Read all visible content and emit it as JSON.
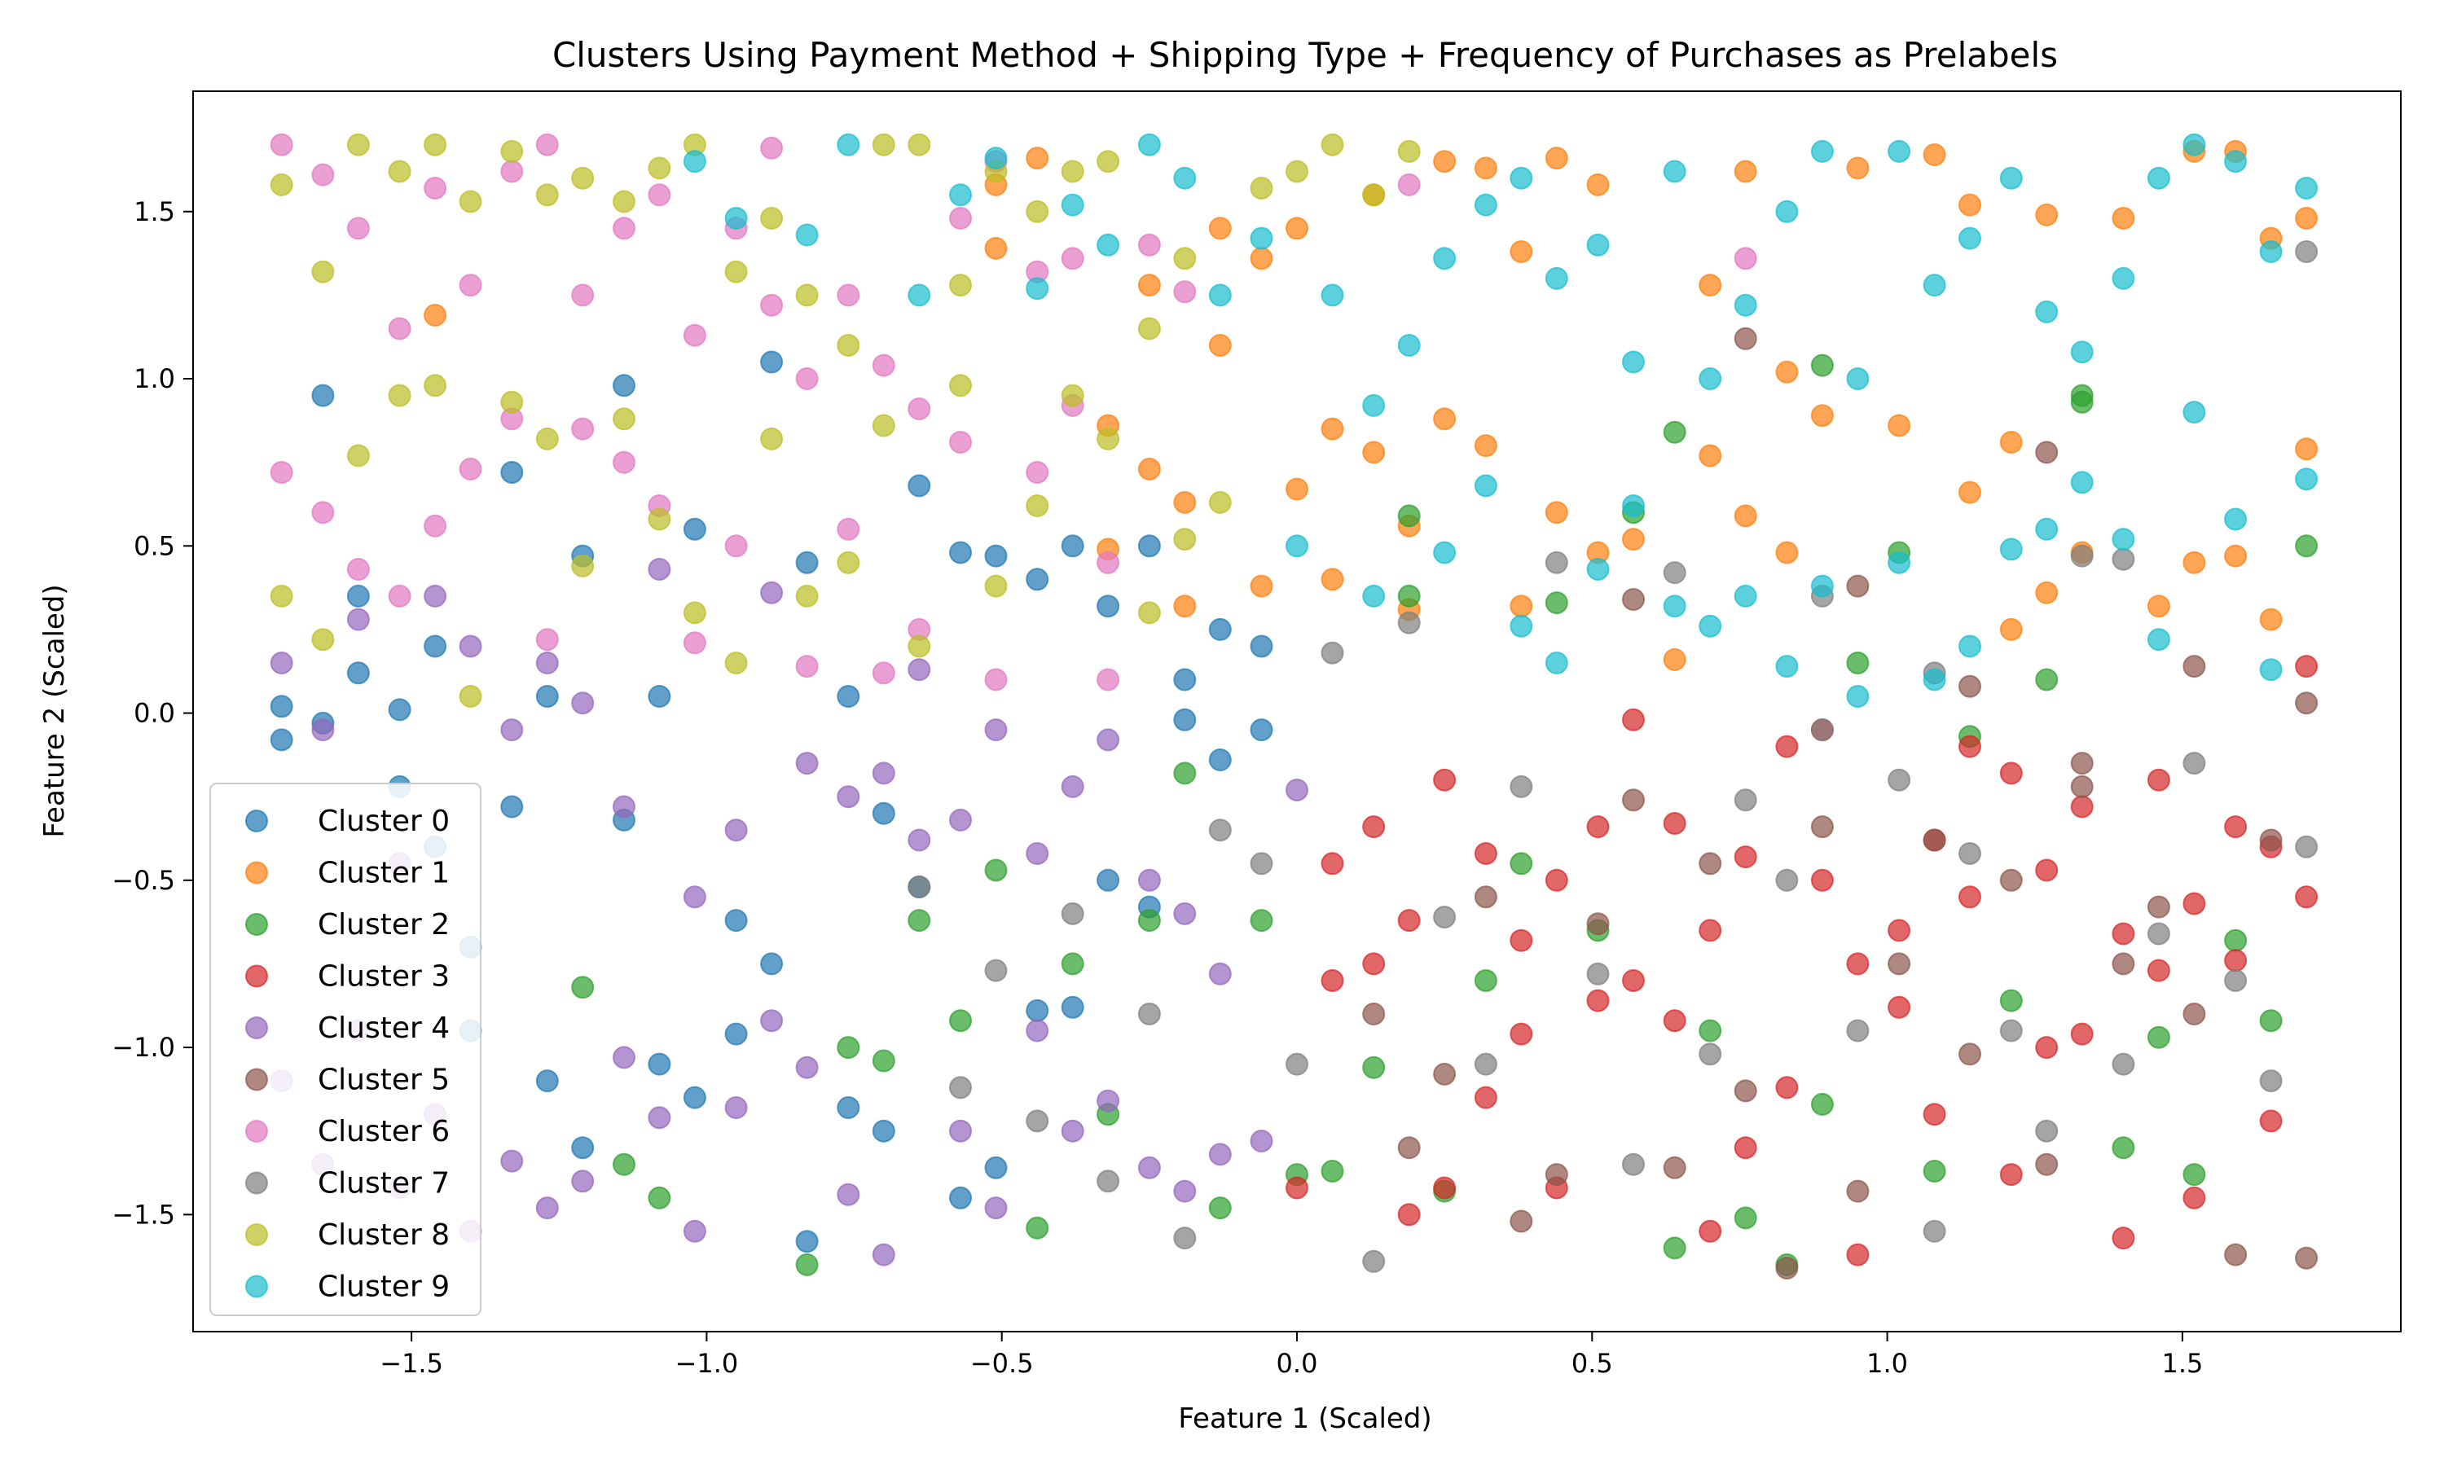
{
  "chart_data": {
    "type": "scatter",
    "title": "Clusters Using Payment Method + Shipping Type + Frequency of Purchases as Prelabels",
    "xlabel": "Feature 1 (Scaled)",
    "ylabel": "Feature 2 (Scaled)",
    "xlim": [
      -1.87,
      1.87
    ],
    "ylim": [
      -1.85,
      1.86
    ],
    "xticks": [
      -1.5,
      -1.0,
      -0.5,
      0.0,
      0.5,
      1.0,
      1.5
    ],
    "yticks": [
      -1.5,
      -1.0,
      -0.5,
      0.0,
      0.5,
      1.0,
      1.5
    ],
    "xtick_labels": [
      "−1.5",
      "−1.0",
      "−0.5",
      "0.0",
      "0.5",
      "1.0",
      "1.5"
    ],
    "ytick_labels": [
      "−1.5",
      "−1.0",
      "−0.5",
      "0.0",
      "0.5",
      "1.0",
      "1.5"
    ],
    "grid": false,
    "legend_position": "lower-left",
    "marker_alpha": 0.7,
    "x_columns": {
      "count": 55,
      "min": -1.71,
      "max": 1.71
    },
    "y_levels": {
      "count": 50,
      "min": -1.68,
      "max": 1.7
    },
    "series": [
      {
        "name": "Cluster 0",
        "color": "#1f77b4",
        "x": [
          -1.72,
          -1.72,
          -1.65,
          -1.65,
          -1.59,
          -1.59,
          -1.52,
          -1.52,
          -1.46,
          -1.46,
          -1.4,
          -1.4,
          -1.33,
          -1.33,
          -1.27,
          -1.27,
          -1.21,
          -1.21,
          -1.14,
          -1.14,
          -1.08,
          -1.08,
          -1.02,
          -1.02,
          -0.95,
          -0.95,
          -0.89,
          -0.89,
          -0.83,
          -0.83,
          -0.76,
          -0.76,
          -0.7,
          -0.7,
          -0.64,
          -0.64,
          -0.57,
          -0.57,
          -0.51,
          -0.51,
          -0.44,
          -0.44,
          -0.38,
          -0.38,
          -0.32,
          -0.32,
          -0.25,
          -0.25,
          -0.19,
          -0.19,
          -0.13,
          -0.13,
          -0.06,
          -0.06
        ],
        "y": [
          -0.08,
          0.02,
          0.95,
          -0.03,
          0.35,
          0.12,
          0.01,
          -0.22,
          0.2,
          -0.4,
          -0.7,
          -0.95,
          0.72,
          -0.28,
          0.05,
          -1.1,
          0.47,
          -1.3,
          0.98,
          -0.32,
          0.05,
          -1.05,
          0.55,
          -1.15,
          -0.62,
          -0.96,
          1.05,
          -0.75,
          0.45,
          -1.58,
          0.05,
          -1.18,
          -0.3,
          -1.25,
          0.68,
          -0.52,
          0.48,
          -1.45,
          0.47,
          -1.36,
          0.4,
          -0.89,
          0.5,
          -0.88,
          0.32,
          -0.5,
          0.5,
          -0.58,
          0.1,
          -0.02,
          0.25,
          -0.14,
          0.2,
          -0.05
        ]
      },
      {
        "name": "Cluster 1",
        "color": "#ff7f0e",
        "x": [
          -1.46,
          -0.51,
          -0.51,
          -0.44,
          -0.32,
          -0.32,
          -0.25,
          -0.25,
          -0.19,
          -0.19,
          -0.13,
          -0.13,
          -0.06,
          -0.06,
          0.0,
          0.0,
          0.06,
          0.06,
          0.13,
          0.13,
          0.19,
          0.19,
          0.25,
          0.25,
          0.32,
          0.32,
          0.38,
          0.38,
          0.44,
          0.44,
          0.51,
          0.51,
          0.57,
          0.64,
          0.7,
          0.7,
          0.76,
          0.76,
          0.83,
          0.83,
          0.89,
          0.95,
          1.02,
          1.08,
          1.14,
          1.14,
          1.21,
          1.21,
          1.27,
          1.27,
          1.33,
          1.4,
          1.46,
          1.52,
          1.52,
          1.59,
          1.59,
          1.65,
          1.65,
          1.71,
          1.71
        ],
        "y": [
          1.19,
          1.58,
          1.39,
          1.66,
          0.86,
          0.49,
          1.28,
          0.73,
          0.63,
          0.32,
          1.1,
          1.45,
          0.38,
          1.36,
          0.67,
          1.45,
          0.4,
          0.85,
          1.55,
          0.78,
          0.31,
          0.56,
          1.65,
          0.88,
          1.63,
          0.8,
          1.38,
          0.32,
          1.66,
          0.6,
          1.58,
          0.48,
          0.52,
          0.16,
          1.28,
          0.77,
          0.59,
          1.62,
          0.48,
          1.02,
          0.89,
          1.63,
          0.86,
          1.67,
          0.66,
          1.52,
          0.81,
          0.25,
          0.36,
          1.49,
          0.48,
          1.48,
          0.32,
          1.68,
          0.45,
          1.68,
          0.47,
          1.42,
          0.28,
          1.48,
          0.79
        ]
      },
      {
        "name": "Cluster 2",
        "color": "#2ca02c",
        "x": [
          -1.21,
          -1.14,
          -1.08,
          -0.83,
          -0.76,
          -0.7,
          -0.64,
          -0.57,
          -0.51,
          -0.44,
          -0.38,
          -0.32,
          -0.25,
          -0.19,
          -0.13,
          -0.06,
          0.0,
          0.06,
          0.13,
          0.19,
          0.25,
          0.32,
          0.38,
          0.44,
          0.51,
          0.57,
          0.64,
          0.7,
          0.76,
          0.83,
          0.89,
          0.95,
          1.02,
          1.08,
          1.14,
          1.21,
          1.27,
          1.33,
          1.4,
          1.46,
          1.52,
          1.59,
          1.65,
          1.71,
          0.19,
          0.64,
          0.89,
          1.33
        ],
        "y": [
          -0.82,
          -1.35,
          -1.45,
          -1.65,
          -1.0,
          -1.04,
          -0.62,
          -0.92,
          -0.47,
          -1.54,
          -0.75,
          -1.2,
          -0.62,
          -0.18,
          -1.48,
          -0.62,
          -1.38,
          -1.37,
          -1.06,
          0.59,
          -1.43,
          -0.8,
          -0.45,
          0.33,
          -0.65,
          0.6,
          -1.6,
          -0.95,
          -1.51,
          -1.65,
          -1.17,
          0.15,
          0.48,
          -1.37,
          -0.07,
          -0.86,
          0.1,
          0.95,
          -1.3,
          -0.97,
          -1.38,
          -0.68,
          -0.92,
          0.5,
          0.35,
          0.84,
          1.04,
          0.93
        ]
      },
      {
        "name": "Cluster 3",
        "color": "#d62728",
        "x": [
          0.0,
          0.06,
          0.06,
          0.13,
          0.13,
          0.19,
          0.19,
          0.25,
          0.25,
          0.32,
          0.32,
          0.38,
          0.38,
          0.44,
          0.44,
          0.51,
          0.51,
          0.57,
          0.57,
          0.64,
          0.64,
          0.7,
          0.7,
          0.76,
          0.76,
          0.83,
          0.83,
          0.89,
          0.89,
          0.95,
          0.95,
          1.02,
          1.02,
          1.08,
          1.08,
          1.14,
          1.14,
          1.21,
          1.21,
          1.27,
          1.27,
          1.33,
          1.33,
          1.4,
          1.4,
          1.46,
          1.46,
          1.52,
          1.52,
          1.59,
          1.59,
          1.65,
          1.65,
          1.71,
          1.71
        ],
        "y": [
          -1.42,
          -0.45,
          -0.8,
          -0.34,
          -0.75,
          -0.62,
          -1.5,
          -1.42,
          -0.2,
          -0.42,
          -1.15,
          -0.68,
          -0.96,
          -0.5,
          -1.42,
          -0.86,
          -0.34,
          -0.02,
          -0.8,
          -0.92,
          -0.33,
          -0.65,
          -1.55,
          -0.43,
          -1.3,
          -0.1,
          -1.12,
          -0.05,
          -0.5,
          -0.75,
          -1.62,
          -0.65,
          -0.88,
          -1.2,
          -0.38,
          -0.1,
          -0.55,
          -0.18,
          -1.38,
          -0.47,
          -1.0,
          -0.28,
          -0.96,
          -0.66,
          -1.57,
          -0.2,
          -0.77,
          -0.57,
          -1.45,
          -0.34,
          -0.74,
          -0.4,
          -1.22,
          -0.55,
          0.14
        ]
      },
      {
        "name": "Cluster 4",
        "color": "#9467bd",
        "x": [
          -1.72,
          -1.72,
          -1.65,
          -1.65,
          -1.59,
          -1.59,
          -1.52,
          -1.52,
          -1.46,
          -1.46,
          -1.4,
          -1.4,
          -1.33,
          -1.33,
          -1.27,
          -1.27,
          -1.21,
          -1.21,
          -1.14,
          -1.14,
          -1.08,
          -1.08,
          -1.02,
          -1.02,
          -0.95,
          -0.95,
          -0.89,
          -0.89,
          -0.83,
          -0.83,
          -0.76,
          -0.76,
          -0.7,
          -0.7,
          -0.64,
          -0.64,
          -0.57,
          -0.57,
          -0.51,
          -0.51,
          -0.44,
          -0.44,
          -0.38,
          -0.38,
          -0.32,
          -0.32,
          -0.25,
          -0.25,
          -0.19,
          -0.19,
          -0.13,
          -0.13,
          -0.06,
          0.0
        ],
        "y": [
          0.15,
          -1.1,
          -0.05,
          -1.35,
          0.28,
          -0.95,
          -0.45,
          -1.42,
          0.35,
          -1.2,
          0.2,
          -1.55,
          -0.05,
          -1.34,
          0.15,
          -1.48,
          0.03,
          -1.4,
          -0.28,
          -1.03,
          0.43,
          -1.21,
          -0.55,
          -1.55,
          -0.35,
          -1.18,
          0.36,
          -0.92,
          -0.15,
          -1.06,
          -0.25,
          -1.44,
          -0.18,
          -1.62,
          0.13,
          -0.38,
          -0.32,
          -1.25,
          -0.05,
          -1.48,
          -0.42,
          -0.95,
          -0.22,
          -1.25,
          -0.08,
          -1.16,
          -0.5,
          -1.36,
          -0.6,
          -1.43,
          -0.78,
          -1.32,
          -1.28,
          -0.23
        ]
      },
      {
        "name": "Cluster 5",
        "color": "#8c564b",
        "x": [
          0.13,
          0.19,
          0.25,
          0.32,
          0.38,
          0.44,
          0.51,
          0.57,
          0.64,
          0.7,
          0.76,
          0.83,
          0.89,
          0.95,
          1.02,
          1.08,
          1.14,
          1.21,
          1.27,
          1.33,
          1.4,
          1.46,
          1.52,
          1.59,
          1.65,
          1.71,
          0.57,
          0.76,
          0.95,
          1.14,
          1.33,
          1.52,
          1.71,
          1.27
        ],
        "y": [
          -0.9,
          -1.3,
          -1.08,
          -0.55,
          -1.52,
          -1.38,
          -0.63,
          -0.26,
          -1.36,
          -0.45,
          -1.13,
          -1.66,
          -0.34,
          -1.43,
          -0.75,
          -0.38,
          -1.02,
          -0.5,
          -1.35,
          -0.22,
          -0.75,
          -0.58,
          -0.9,
          -1.62,
          -0.38,
          -1.63,
          0.34,
          1.12,
          0.38,
          0.08,
          -0.15,
          0.14,
          0.03,
          0.78
        ]
      },
      {
        "name": "Cluster 6",
        "color": "#e377c2",
        "x": [
          -1.72,
          -1.72,
          -1.65,
          -1.65,
          -1.59,
          -1.59,
          -1.52,
          -1.52,
          -1.46,
          -1.46,
          -1.4,
          -1.4,
          -1.33,
          -1.33,
          -1.27,
          -1.27,
          -1.21,
          -1.21,
          -1.14,
          -1.14,
          -1.08,
          -1.08,
          -1.02,
          -1.02,
          -0.95,
          -0.95,
          -0.89,
          -0.89,
          -0.83,
          -0.83,
          -0.76,
          -0.76,
          -0.7,
          -0.7,
          -0.64,
          -0.64,
          -0.57,
          -0.57,
          -0.51,
          -0.51,
          -0.44,
          -0.44,
          -0.38,
          -0.38,
          -0.32,
          -0.32,
          -0.25,
          -0.19,
          0.19,
          0.76
        ],
        "y": [
          1.7,
          0.72,
          1.61,
          0.6,
          1.45,
          0.43,
          1.15,
          0.35,
          1.57,
          0.56,
          1.28,
          0.73,
          1.62,
          0.88,
          1.7,
          0.22,
          1.25,
          0.85,
          1.45,
          0.75,
          1.55,
          0.62,
          1.13,
          0.21,
          1.45,
          0.5,
          1.69,
          1.22,
          1.0,
          0.14,
          1.25,
          0.55,
          1.04,
          0.12,
          0.91,
          0.25,
          1.48,
          0.81,
          1.65,
          0.1,
          1.32,
          0.72,
          1.36,
          0.92,
          0.45,
          0.1,
          1.4,
          1.26,
          1.58,
          1.36
        ]
      },
      {
        "name": "Cluster 7",
        "color": "#7f7f7f",
        "x": [
          -0.64,
          -0.57,
          -0.51,
          -0.44,
          -0.38,
          -0.32,
          -0.25,
          -0.19,
          -0.13,
          -0.06,
          0.0,
          0.06,
          0.13,
          0.19,
          0.25,
          0.32,
          0.38,
          0.44,
          0.51,
          0.57,
          0.64,
          0.7,
          0.76,
          0.83,
          0.89,
          0.95,
          1.02,
          1.08,
          1.14,
          1.21,
          1.27,
          1.33,
          1.4,
          1.46,
          1.52,
          1.59,
          1.65,
          1.71,
          0.89,
          1.08,
          1.4,
          1.71
        ],
        "y": [
          -0.52,
          -1.12,
          -0.77,
          -1.22,
          -0.6,
          -1.4,
          -0.9,
          -1.57,
          -0.35,
          -0.45,
          -1.05,
          0.18,
          -1.64,
          0.27,
          -0.61,
          -1.05,
          -0.22,
          0.45,
          -0.78,
          -1.35,
          0.42,
          -1.02,
          -0.26,
          -0.5,
          0.35,
          -0.95,
          -0.2,
          -1.55,
          -0.42,
          -0.95,
          -1.25,
          0.47,
          -1.05,
          -0.66,
          -0.15,
          -0.8,
          -1.1,
          -0.4,
          -0.05,
          0.12,
          0.46,
          1.38
        ]
      },
      {
        "name": "Cluster 8",
        "color": "#bcbd22",
        "x": [
          -1.72,
          -1.72,
          -1.65,
          -1.65,
          -1.59,
          -1.59,
          -1.52,
          -1.52,
          -1.46,
          -1.46,
          -1.4,
          -1.4,
          -1.33,
          -1.33,
          -1.27,
          -1.27,
          -1.21,
          -1.21,
          -1.14,
          -1.14,
          -1.08,
          -1.08,
          -1.02,
          -1.02,
          -0.95,
          -0.95,
          -0.89,
          -0.89,
          -0.83,
          -0.83,
          -0.76,
          -0.76,
          -0.7,
          -0.7,
          -0.64,
          -0.64,
          -0.57,
          -0.57,
          -0.51,
          -0.51,
          -0.44,
          -0.44,
          -0.38,
          -0.38,
          -0.32,
          -0.32,
          -0.25,
          -0.25,
          -0.19,
          -0.19,
          -0.13,
          -0.06,
          0.0,
          0.06,
          0.13,
          0.19
        ],
        "y": [
          1.58,
          0.35,
          1.32,
          0.22,
          1.7,
          0.77,
          1.62,
          0.95,
          1.7,
          0.98,
          1.53,
          0.05,
          1.68,
          0.93,
          1.55,
          0.82,
          1.6,
          0.44,
          1.53,
          0.88,
          1.63,
          0.58,
          1.7,
          0.3,
          1.32,
          0.15,
          1.48,
          0.82,
          1.25,
          0.35,
          1.1,
          0.45,
          1.7,
          0.86,
          1.7,
          0.2,
          1.28,
          0.98,
          1.62,
          0.38,
          1.5,
          0.62,
          1.62,
          0.95,
          1.65,
          0.82,
          1.15,
          0.3,
          1.36,
          0.52,
          0.63,
          1.57,
          1.62,
          1.7,
          1.55,
          1.68
        ]
      },
      {
        "name": "Cluster 9",
        "color": "#17becf",
        "x": [
          -1.02,
          -0.95,
          -0.83,
          -0.76,
          -0.64,
          -0.57,
          -0.51,
          -0.44,
          -0.38,
          -0.32,
          -0.25,
          -0.19,
          -0.13,
          -0.06,
          0.0,
          0.06,
          0.13,
          0.13,
          0.19,
          0.25,
          0.25,
          0.32,
          0.32,
          0.38,
          0.38,
          0.44,
          0.44,
          0.51,
          0.51,
          0.57,
          0.57,
          0.64,
          0.64,
          0.7,
          0.7,
          0.76,
          0.76,
          0.83,
          0.83,
          0.89,
          0.89,
          0.95,
          0.95,
          1.02,
          1.02,
          1.08,
          1.08,
          1.14,
          1.14,
          1.21,
          1.21,
          1.27,
          1.27,
          1.33,
          1.33,
          1.4,
          1.4,
          1.46,
          1.46,
          1.52,
          1.52,
          1.59,
          1.59,
          1.65,
          1.65,
          1.71,
          1.71
        ],
        "y": [
          1.65,
          1.48,
          1.43,
          1.7,
          1.25,
          1.55,
          1.66,
          1.27,
          1.52,
          1.4,
          1.7,
          1.6,
          1.25,
          1.42,
          0.5,
          1.25,
          0.92,
          0.35,
          1.1,
          0.48,
          1.36,
          0.68,
          1.52,
          0.26,
          1.6,
          0.15,
          1.3,
          0.43,
          1.4,
          0.62,
          1.05,
          0.32,
          1.62,
          0.26,
          1.0,
          0.35,
          1.22,
          0.14,
          1.5,
          0.38,
          1.68,
          0.05,
          1.0,
          0.45,
          1.68,
          0.1,
          1.28,
          0.2,
          1.42,
          0.49,
          1.6,
          1.2,
          0.55,
          0.69,
          1.08,
          1.3,
          0.52,
          0.22,
          1.6,
          0.9,
          1.7,
          0.58,
          1.65,
          0.13,
          1.38,
          0.7,
          1.57
        ]
      }
    ]
  }
}
